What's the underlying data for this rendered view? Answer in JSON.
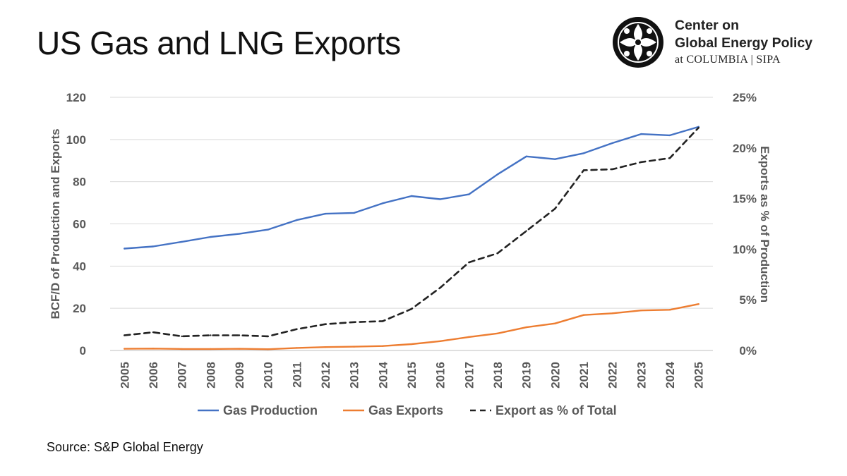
{
  "slide": {
    "title": "US Gas and LNG Exports",
    "source": "Source: S&P Global Energy"
  },
  "logo": {
    "line1": "Center on",
    "line2": "Global Energy Policy",
    "line3": "at COLUMBIA | SIPA",
    "icon": "columbia-crown-emblem-icon"
  },
  "colors": {
    "production": "#4472C4",
    "exports": "#ED7D31",
    "percent": "#222222",
    "grid": "#D9D9D9",
    "text": "#595959"
  },
  "chart_data": {
    "type": "line",
    "title": "US Gas and LNG Exports",
    "xlabel": "",
    "ylabel": "BCF/D of Production and Exports",
    "y2label": "Exports as % of Production",
    "ylim": [
      0,
      120
    ],
    "y2lim": [
      0,
      25
    ],
    "yticks": [
      "0",
      "20",
      "40",
      "60",
      "80",
      "100",
      "120"
    ],
    "y2ticks": [
      "0%",
      "5%",
      "10%",
      "15%",
      "20%",
      "25%"
    ],
    "grid": true,
    "legend_position": "bottom",
    "categories": [
      "2005",
      "2006",
      "2007",
      "2008",
      "2009",
      "2010",
      "2011",
      "2012",
      "2013",
      "2014",
      "2015",
      "2016",
      "2017",
      "2018",
      "2019",
      "2020",
      "2021",
      "2022",
      "2023",
      "2024",
      "2025"
    ],
    "series": [
      {
        "name": "Gas Production",
        "axis": "left",
        "style": "solid",
        "color": "#4472C4",
        "values": [
          48.3,
          49.3,
          51.5,
          53.8,
          55.3,
          57.3,
          61.8,
          64.8,
          65.2,
          69.8,
          73.2,
          71.7,
          74.0,
          83.5,
          92.0,
          90.7,
          93.5,
          98.3,
          102.6,
          102.0,
          106.0
        ]
      },
      {
        "name": "Gas Exports",
        "axis": "left",
        "style": "solid",
        "color": "#ED7D31",
        "values": [
          0.8,
          0.9,
          0.7,
          0.7,
          0.8,
          0.6,
          1.2,
          1.6,
          1.8,
          2.1,
          3.0,
          4.4,
          6.4,
          8.1,
          11.0,
          12.8,
          16.8,
          17.6,
          19.0,
          19.3,
          22.0
        ]
      },
      {
        "name": "Export as % of Total",
        "axis": "right",
        "style": "dashed",
        "color": "#222222",
        "values": [
          1.5,
          1.8,
          1.4,
          1.5,
          1.5,
          1.4,
          2.1,
          2.6,
          2.8,
          2.9,
          4.1,
          6.2,
          8.7,
          9.6,
          11.8,
          14.0,
          17.8,
          17.9,
          18.6,
          19.0,
          22.0
        ]
      }
    ]
  }
}
